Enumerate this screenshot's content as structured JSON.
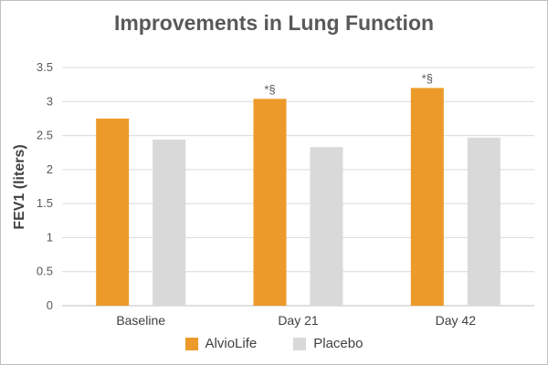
{
  "chart_data": {
    "type": "bar",
    "title": "Improvements in Lung Function",
    "xlabel": "",
    "ylabel": "FEV1 (liters)",
    "categories": [
      "Baseline",
      "Day 21",
      "Day 42"
    ],
    "series": [
      {
        "name": "AlvioLife",
        "color": "#ec9a29",
        "values": [
          2.75,
          3.04,
          3.2
        ],
        "annotations": [
          "",
          "*§",
          "*§"
        ]
      },
      {
        "name": "Placebo",
        "color": "#d9d9d9",
        "values": [
          2.44,
          2.33,
          2.47
        ],
        "annotations": [
          "",
          "",
          ""
        ]
      }
    ],
    "ylim": [
      0,
      3.5
    ],
    "yticks": [
      "0",
      "0.5",
      "1",
      "1.5",
      "2",
      "2.5",
      "3",
      "3.5"
    ],
    "grid": true,
    "legend_position": "bottom"
  }
}
